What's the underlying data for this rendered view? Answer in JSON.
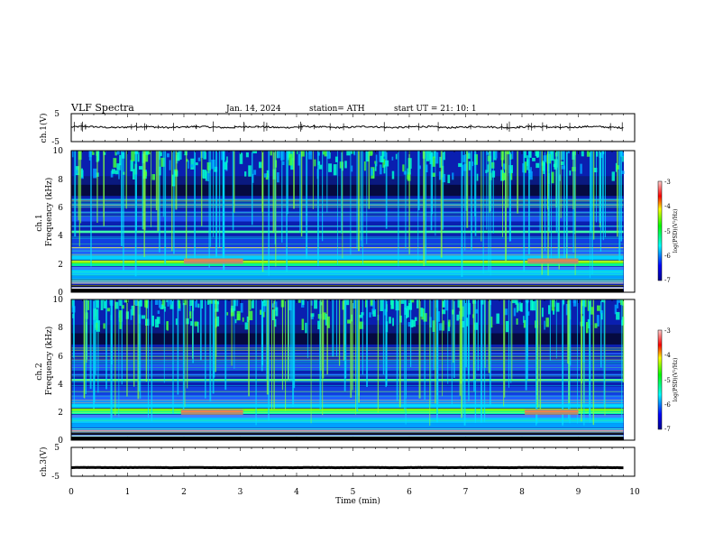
{
  "header": {
    "title": "VLF  Spectra",
    "date": "Jan. 14, 2024",
    "station": "station= ATH",
    "start": "start  UT  =    21: 10: 1"
  },
  "chart_data": [
    {
      "type": "line",
      "ylabel": "ch.1(V)",
      "yticks": [
        "5",
        "-5"
      ],
      "ylim": [
        -5,
        5
      ],
      "xlim": [
        0,
        10
      ],
      "x_end": 9.8,
      "baseline": 0.2,
      "noise_amplitude": 0.6
    },
    {
      "type": "heatmap",
      "ylabel_top": "ch.1",
      "ylabel": "Frequency  (kHz)",
      "yticks": [
        "10",
        "8",
        "6",
        "4",
        "2",
        "0"
      ],
      "ylim": [
        0,
        10
      ],
      "xlim": [
        0,
        10
      ],
      "x_end": 9.8,
      "highlight_bands": [
        {
          "x0": 2.0,
          "x1": 3.05,
          "f": 2.2
        },
        {
          "x0": 8.1,
          "x1": 9.0,
          "f": 2.2
        }
      ],
      "colorbar": {
        "label": "log(PSD)(V²/Hz)",
        "ticks": [
          "-3",
          "-4",
          "-5",
          "-6",
          "-7"
        ],
        "range": [
          -7,
          -3
        ]
      }
    },
    {
      "type": "heatmap",
      "ylabel_top": "ch.2",
      "ylabel": "Frequency  (kHz)",
      "yticks": [
        "10",
        "8",
        "6",
        "4",
        "2",
        "0"
      ],
      "ylim": [
        0,
        10
      ],
      "xlim": [
        0,
        10
      ],
      "x_end": 9.8,
      "highlight_bands": [
        {
          "x0": 1.95,
          "x1": 3.05,
          "f": 2.0
        },
        {
          "x0": 8.05,
          "x1": 9.0,
          "f": 2.0
        }
      ],
      "colorbar": {
        "label": "log(PSD)(V²/Hz)",
        "ticks": [
          "-3",
          "-4",
          "-5",
          "-6",
          "-7"
        ],
        "range": [
          -7,
          -3
        ]
      }
    },
    {
      "type": "line",
      "ylabel": "ch.3(V)",
      "yticks": [
        "5",
        "-5"
      ],
      "ylim": [
        -5,
        5
      ],
      "xlim": [
        0,
        10
      ],
      "x_end": 9.8,
      "baseline": -2.0,
      "noise_amplitude": 0.1
    }
  ],
  "xaxis": {
    "label": "Time  (min)",
    "ticks": [
      "0",
      "1",
      "2",
      "3",
      "4",
      "5",
      "6",
      "7",
      "8",
      "9",
      "10"
    ]
  }
}
